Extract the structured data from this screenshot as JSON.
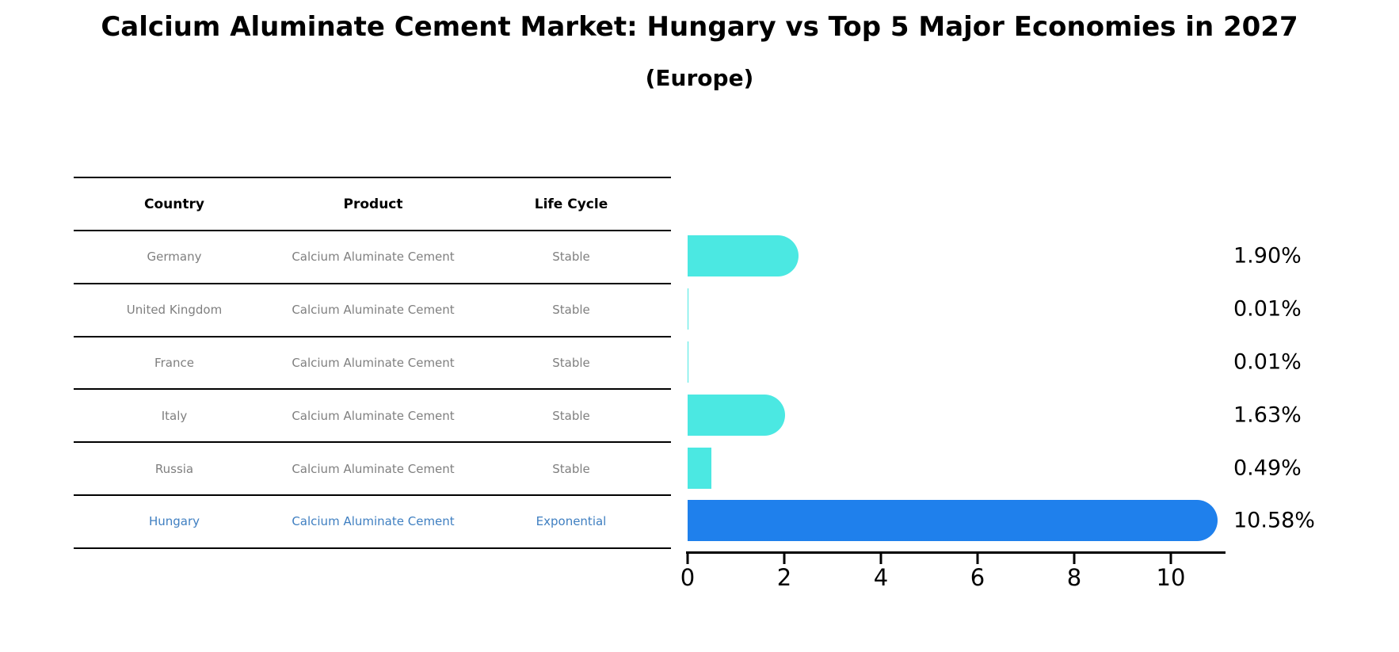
{
  "title": "Calcium Aluminate Cement Market: Hungary vs Top 5 Major Economies in 2027",
  "subtitle": "(Europe)",
  "table": {
    "headers": [
      "Country",
      "Product",
      "Life Cycle"
    ],
    "rows": [
      {
        "country": "Germany",
        "product": "Calcium Aluminate Cement",
        "life_cycle": "Stable",
        "highlight": false
      },
      {
        "country": "United Kingdom",
        "product": "Calcium Aluminate Cement",
        "life_cycle": "Stable",
        "highlight": false
      },
      {
        "country": "France",
        "product": "Calcium Aluminate Cement",
        "life_cycle": "Stable",
        "highlight": false
      },
      {
        "country": "Italy",
        "product": "Calcium Aluminate Cement",
        "life_cycle": "Stable",
        "highlight": false
      },
      {
        "country": "Russia",
        "product": "Calcium Aluminate Cement",
        "life_cycle": "Stable",
        "highlight": false
      },
      {
        "country": "Hungary",
        "product": "Calcium Aluminate Cement",
        "life_cycle": "Exponential",
        "highlight": true
      }
    ]
  },
  "chart_data": {
    "type": "bar",
    "orientation": "horizontal",
    "title": "Calcium Aluminate Cement Market: Hungary vs Top 5 Major Economies in 2027 (Europe)",
    "categories": [
      "Germany",
      "United Kingdom",
      "France",
      "Italy",
      "Russia",
      "Hungary"
    ],
    "values": [
      1.9,
      0.01,
      0.01,
      1.63,
      0.49,
      10.58
    ],
    "value_labels": [
      "1.90%",
      "0.01%",
      "0.01%",
      "1.63%",
      "0.49%",
      "10.58%"
    ],
    "x_ticks": [
      "0",
      "2",
      "4",
      "6",
      "8",
      "10"
    ],
    "x_tick_values": [
      0,
      2,
      4,
      6,
      8,
      10
    ],
    "xlim": [
      0,
      11.13
    ],
    "grid": false,
    "legend": false,
    "bar_color": "#4be8e2",
    "highlight_color": "#1f80ec",
    "highlight_index": 5,
    "highlight_border_style": "dotted"
  },
  "colors": {
    "row_text": "#7f7f7f",
    "highlight_text": "#3f7fc1",
    "header_text": "#000000",
    "axis": "#000000"
  }
}
